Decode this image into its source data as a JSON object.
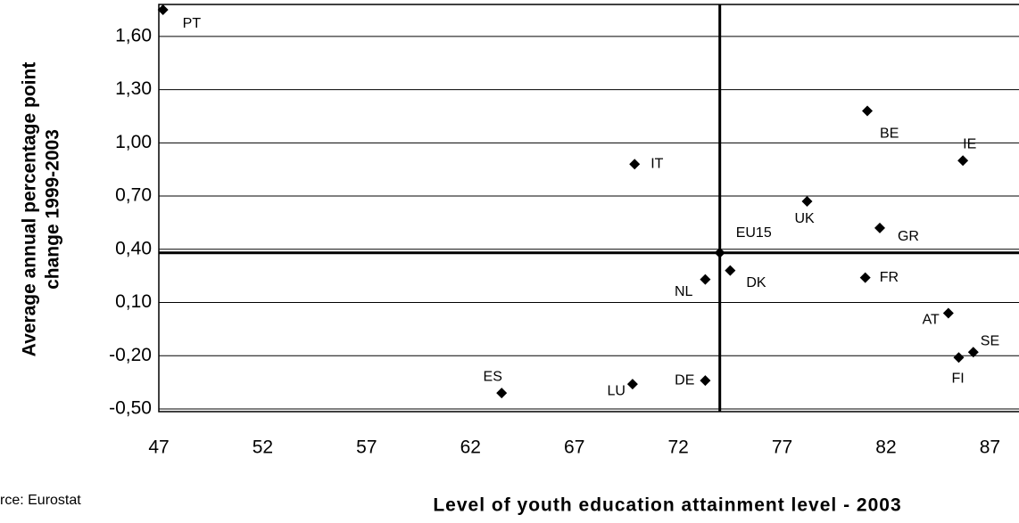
{
  "chart_data": {
    "type": "scatter",
    "ylabel": [
      "Average annual percentage point",
      "change 1999-2003"
    ],
    "xlabel": "Level of youth education attainment level - 2003",
    "source": "rce: Eurostat",
    "labels": [
      "PT",
      "IT",
      "BE",
      "IE",
      "UK",
      "GR",
      "EU15",
      "NL",
      "DK",
      "FR",
      "AT",
      "SE",
      "FI",
      "ES",
      "LU",
      "DE"
    ],
    "x": [
      47.2,
      69.9,
      81.1,
      85.7,
      78.2,
      81.7,
      74.0,
      73.3,
      74.5,
      81.0,
      85.0,
      86.2,
      85.5,
      63.5,
      69.8,
      73.3
    ],
    "values": [
      1.75,
      0.88,
      1.18,
      0.9,
      0.67,
      0.52,
      0.38,
      0.23,
      0.28,
      0.24,
      0.04,
      -0.18,
      -0.21,
      -0.41,
      -0.36,
      -0.34
    ],
    "color": "#000000",
    "reference_index": 6,
    "xlim": [
      47,
      88.4
    ],
    "xticks": [
      47,
      52,
      57,
      62,
      67,
      72,
      77,
      82,
      87
    ],
    "ylim": [
      -0.5,
      1.78
    ],
    "yticks": [
      {
        "value": -0.5,
        "label": "-0,50"
      },
      {
        "value": -0.2,
        "label": "-0,20"
      },
      {
        "value": 0.1,
        "label": "0,10"
      },
      {
        "value": 0.4,
        "label": "0,40"
      },
      {
        "value": 0.7,
        "label": "0,70"
      },
      {
        "value": 1.0,
        "label": "1,00"
      },
      {
        "value": 1.3,
        "label": "1,30"
      },
      {
        "value": 1.6,
        "label": "1,60"
      }
    ],
    "grid": true
  }
}
